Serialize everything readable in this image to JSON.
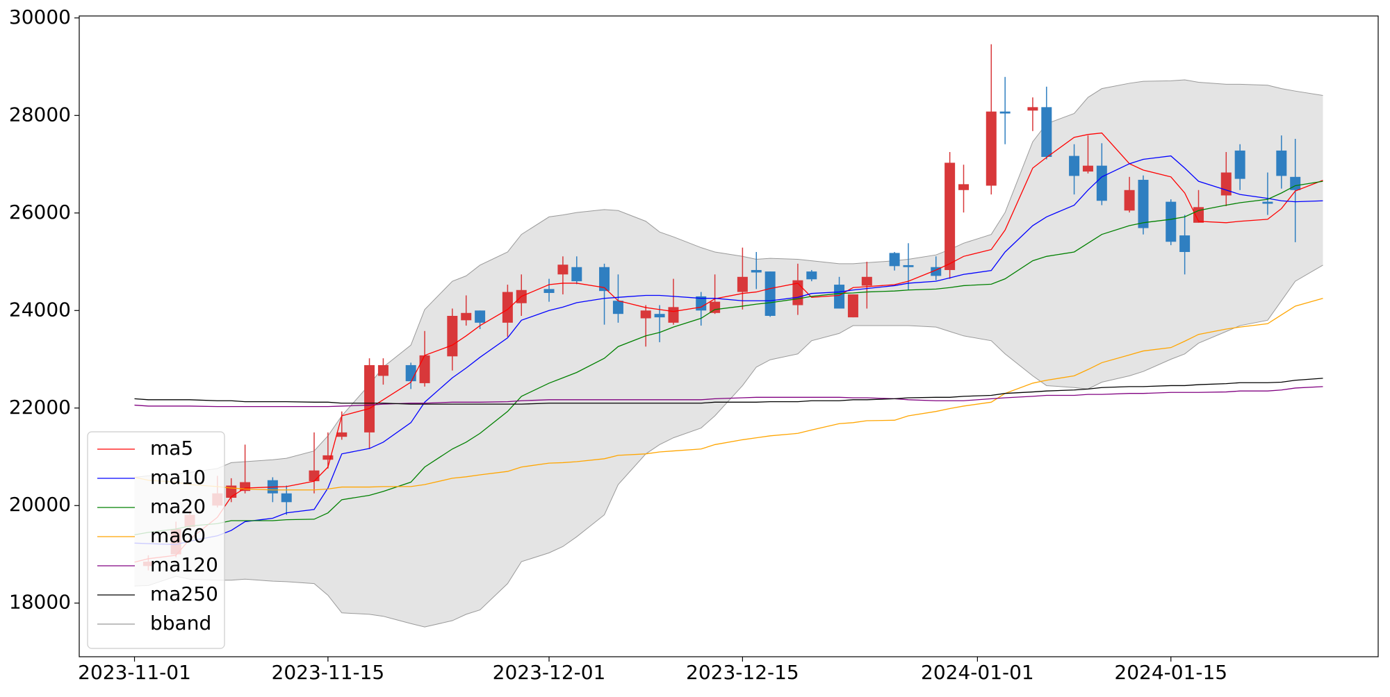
{
  "chart_data": {
    "type": "candlestick",
    "x": [
      "2023-11-01",
      "2023-11-02",
      "2023-11-04",
      "2023-11-05",
      "2023-11-07",
      "2023-11-08",
      "2023-11-09",
      "2023-11-11",
      "2023-11-12",
      "2023-11-14",
      "2023-11-15",
      "2023-11-16",
      "2023-11-18",
      "2023-11-19",
      "2023-11-21",
      "2023-11-22",
      "2023-11-24",
      "2023-11-25",
      "2023-11-26",
      "2023-11-28",
      "2023-11-29",
      "2023-12-01",
      "2023-12-02",
      "2023-12-03",
      "2023-12-05",
      "2023-12-06",
      "2023-12-08",
      "2023-12-09",
      "2023-12-10",
      "2023-12-12",
      "2023-12-13",
      "2023-12-15",
      "2023-12-16",
      "2023-12-17",
      "2023-12-19",
      "2023-12-20",
      "2023-12-22",
      "2023-12-23",
      "2023-12-24",
      "2023-12-26",
      "2023-12-27",
      "2023-12-29",
      "2023-12-30",
      "2023-12-31",
      "2024-01-02",
      "2024-01-03",
      "2024-01-05",
      "2024-01-06",
      "2024-01-08",
      "2024-01-09",
      "2024-01-10",
      "2024-01-12",
      "2024-01-13",
      "2024-01-15",
      "2024-01-16",
      "2024-01-17",
      "2024-01-19",
      "2024-01-20",
      "2024-01-22",
      "2024-01-23",
      "2024-01-24",
      "2024-01-26"
    ],
    "candles": {
      "up_color": "#d8383a",
      "down_color": "#2f7fc1",
      "open": [
        null,
        18760,
        19000,
        19560,
        20000,
        20160,
        20300,
        20520,
        20250,
        20500,
        20940,
        21410,
        21500,
        22660,
        22880,
        22510,
        23060,
        23800,
        24000,
        23750,
        24150,
        24440,
        24740,
        24890,
        24890,
        24200,
        23840,
        23930,
        23750,
        24290,
        23950,
        24380,
        24830,
        24800,
        24110,
        24800,
        24530,
        23860,
        24510,
        25180,
        24930,
        24890,
        24830,
        26470,
        26560,
        28080,
        28100,
        28170,
        27170,
        26850,
        26970,
        26050,
        26680,
        26230,
        25540,
        25800,
        26360,
        27280,
        26230,
        27280,
        26740,
        null
      ],
      "high": [
        null,
        18980,
        19670,
        19910,
        20610,
        20560,
        21250,
        20580,
        20410,
        21500,
        21500,
        21930,
        23020,
        23020,
        22930,
        23580,
        24040,
        24310,
        24000,
        24530,
        24740,
        24650,
        25110,
        25110,
        24960,
        24740,
        24110,
        24110,
        24650,
        24380,
        24740,
        25290,
        25200,
        24800,
        24960,
        24830,
        24690,
        24330,
        25000,
        25200,
        25380,
        25110,
        27250,
        26990,
        29460,
        28790,
        28370,
        28590,
        27410,
        27590,
        27430,
        26740,
        26770,
        26280,
        25960,
        26470,
        27250,
        27410,
        26830,
        27590,
        27520,
        null
      ],
      "low": [
        null,
        18670,
        18940,
        19520,
        19960,
        20070,
        20250,
        20070,
        19810,
        20250,
        20760,
        21350,
        21160,
        22480,
        22390,
        22440,
        22770,
        23690,
        23620,
        23460,
        23890,
        24180,
        24330,
        24540,
        23710,
        23750,
        23260,
        23350,
        23710,
        23690,
        23930,
        24020,
        24440,
        23870,
        23910,
        24600,
        24040,
        23860,
        24040,
        24820,
        24420,
        24620,
        24650,
        26010,
        26380,
        27410,
        27680,
        27100,
        26380,
        26810,
        26160,
        26010,
        25560,
        25340,
        24740,
        25800,
        26140,
        26470,
        25960,
        26500,
        25400,
        null
      ],
      "close": [
        null,
        18850,
        19520,
        19810,
        20250,
        20410,
        20480,
        20250,
        20070,
        20720,
        21030,
        21500,
        22880,
        22880,
        22550,
        23080,
        23890,
        23950,
        23750,
        24380,
        24420,
        24360,
        24940,
        24600,
        24400,
        23930,
        24000,
        23860,
        24070,
        24000,
        24180,
        24690,
        24780,
        23890,
        24620,
        24640,
        24040,
        24330,
        24690,
        24910,
        24890,
        24710,
        27030,
        26590,
        28080,
        28040,
        28170,
        27150,
        26760,
        26970,
        26250,
        26470,
        25690,
        25410,
        25200,
        26120,
        26830,
        26700,
        26190,
        26760,
        26470,
        null
      ]
    },
    "series": [
      {
        "name": "ma5",
        "color": "#ff0000",
        "values": [
          18840,
          18910,
          18980,
          19310,
          19760,
          20180,
          20360,
          20380,
          20390,
          20500,
          20790,
          21840,
          21990,
          22170,
          22530,
          23080,
          23290,
          23480,
          23690,
          24020,
          24290,
          24530,
          24560,
          24560,
          24470,
          24200,
          24060,
          24020,
          23980,
          24070,
          24240,
          24350,
          24380,
          24450,
          24560,
          24270,
          24310,
          24470,
          24490,
          24530,
          24600,
          24830,
          24960,
          25110,
          25250,
          25650,
          26920,
          27140,
          27550,
          27610,
          27640,
          27010,
          26880,
          26740,
          26410,
          25830,
          25800,
          25830,
          25870,
          26090,
          26450,
          26670
        ]
      },
      {
        "name": "ma10",
        "color": "#0000ff",
        "values": [
          19230,
          19220,
          19200,
          19270,
          19380,
          19490,
          19670,
          19740,
          19850,
          19920,
          20360,
          21060,
          21170,
          21300,
          21700,
          22120,
          22620,
          22820,
          23040,
          23440,
          23800,
          24000,
          24070,
          24160,
          24250,
          24270,
          24310,
          24310,
          24290,
          24250,
          24250,
          24200,
          24200,
          24200,
          24270,
          24350,
          24380,
          24420,
          24450,
          24510,
          24560,
          24600,
          24670,
          24740,
          24820,
          25200,
          25740,
          25920,
          26160,
          26470,
          26740,
          27010,
          27100,
          27170,
          26920,
          26650,
          26470,
          26380,
          26300,
          26250,
          26230,
          26250
        ]
      },
      {
        "name": "ma20",
        "color": "#008000",
        "values": [
          19400,
          19450,
          19520,
          19580,
          19630,
          19690,
          19690,
          19690,
          19710,
          19720,
          19850,
          20120,
          20210,
          20290,
          20480,
          20790,
          21160,
          21300,
          21480,
          21930,
          22240,
          22510,
          22620,
          22730,
          23020,
          23260,
          23480,
          23550,
          23660,
          23840,
          24020,
          24090,
          24130,
          24160,
          24240,
          24290,
          24350,
          24360,
          24380,
          24400,
          24420,
          24440,
          24470,
          24510,
          24540,
          24650,
          25020,
          25110,
          25200,
          25380,
          25560,
          25740,
          25800,
          25870,
          25920,
          26050,
          26160,
          26210,
          26280,
          26410,
          26560,
          26650
        ]
      },
      {
        "name": "ma60",
        "color": "#ffa500",
        "values": [
          20580,
          20520,
          20480,
          20430,
          20390,
          20360,
          20340,
          20320,
          20320,
          20320,
          20340,
          20380,
          20380,
          20390,
          20390,
          20430,
          20560,
          20590,
          20630,
          20700,
          20790,
          20870,
          20880,
          20900,
          20960,
          21030,
          21060,
          21100,
          21120,
          21160,
          21250,
          21350,
          21390,
          21430,
          21480,
          21550,
          21680,
          21700,
          21740,
          21750,
          21840,
          21930,
          21990,
          22040,
          22120,
          22300,
          22510,
          22570,
          22660,
          22790,
          22930,
          23090,
          23170,
          23240,
          23370,
          23510,
          23620,
          23660,
          23730,
          23910,
          24090,
          24250
        ]
      },
      {
        "name": "ma120",
        "color": "#800080",
        "values": [
          22060,
          22040,
          22040,
          22040,
          22030,
          22030,
          22030,
          22030,
          22030,
          22030,
          22030,
          22040,
          22060,
          22080,
          22100,
          22100,
          22120,
          22120,
          22120,
          22130,
          22150,
          22170,
          22170,
          22170,
          22170,
          22170,
          22170,
          22170,
          22170,
          22170,
          22190,
          22210,
          22220,
          22220,
          22220,
          22220,
          22220,
          22210,
          22210,
          22190,
          22170,
          22150,
          22150,
          22150,
          22190,
          22210,
          22240,
          22260,
          22260,
          22280,
          22280,
          22300,
          22300,
          22320,
          22320,
          22320,
          22330,
          22350,
          22350,
          22370,
          22410,
          22440
        ]
      },
      {
        "name": "ma250",
        "color": "#000000",
        "values": [
          22190,
          22170,
          22170,
          22170,
          22150,
          22150,
          22130,
          22130,
          22130,
          22120,
          22120,
          22100,
          22100,
          22100,
          22080,
          22080,
          22080,
          22080,
          22080,
          22080,
          22080,
          22100,
          22100,
          22100,
          22100,
          22100,
          22100,
          22100,
          22100,
          22100,
          22120,
          22120,
          22120,
          22130,
          22130,
          22150,
          22150,
          22170,
          22170,
          22190,
          22210,
          22220,
          22220,
          22240,
          22260,
          22300,
          22330,
          22350,
          22370,
          22390,
          22420,
          22440,
          22440,
          22460,
          22460,
          22480,
          22500,
          22520,
          22520,
          22530,
          22570,
          22610
        ]
      }
    ],
    "bband": {
      "name": "bband",
      "color": "#999999",
      "fill": "#e4e4e4",
      "upper": [
        20580,
        20610,
        20650,
        20680,
        20760,
        20880,
        20900,
        20940,
        20970,
        21120,
        21430,
        21840,
        22480,
        22840,
        23290,
        24020,
        24600,
        24710,
        24930,
        25200,
        25560,
        25920,
        25960,
        26010,
        26070,
        26050,
        25830,
        25610,
        25510,
        25290,
        25200,
        25110,
        25050,
        25070,
        25050,
        25020,
        24960,
        24960,
        24980,
        25020,
        25050,
        25140,
        25250,
        25380,
        25560,
        26010,
        27460,
        27830,
        28040,
        28370,
        28550,
        28660,
        28700,
        28710,
        28730,
        28680,
        28640,
        28640,
        28620,
        28550,
        28500,
        28410
      ],
      "lower": [
        18350,
        18360,
        18550,
        18490,
        18470,
        18470,
        18490,
        18450,
        18440,
        18400,
        18160,
        17800,
        17770,
        17730,
        17580,
        17510,
        17640,
        17770,
        17860,
        18400,
        18850,
        19030,
        19160,
        19360,
        19810,
        20430,
        21060,
        21250,
        21390,
        21590,
        21840,
        22460,
        22840,
        22990,
        23110,
        23380,
        23530,
        23690,
        23690,
        23690,
        23690,
        23660,
        23570,
        23480,
        23380,
        23110,
        22660,
        22460,
        22420,
        22390,
        22530,
        22660,
        22750,
        23000,
        23110,
        23330,
        23570,
        23690,
        23800,
        24200,
        24600,
        24930
      ]
    },
    "xlim": [
      "2023-10-28",
      "2024-01-30"
    ],
    "xticks": [
      "2023-11-01",
      "2023-11-15",
      "2023-12-01",
      "2023-12-15",
      "2024-01-01",
      "2024-01-15"
    ],
    "ylim": [
      16900,
      30040
    ],
    "yticks": [
      18000,
      20000,
      22000,
      24000,
      26000,
      28000,
      30000
    ],
    "legend": "lower left"
  }
}
